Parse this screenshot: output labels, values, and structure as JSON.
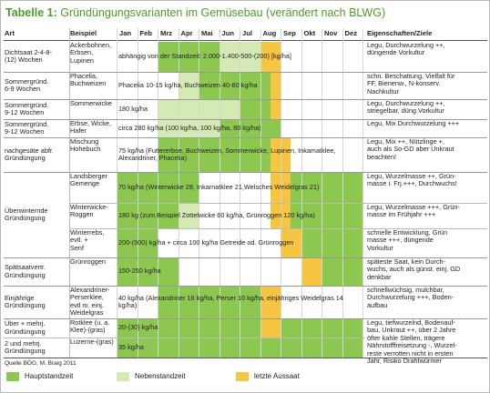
{
  "title": {
    "label": "Tabelle 1:",
    "text": "Gründüngungsvarianten im Gemüsebau (verändert nach BLWG)"
  },
  "header": [
    "Art",
    "Beispiel",
    "Jan",
    "Feb",
    "Mrz",
    "Apr",
    "Mai",
    "Jun",
    "Jul",
    "Aug",
    "Sep",
    "Okt",
    "Nov",
    "Dez",
    "Eigenschaften/Ziele"
  ],
  "rows": [
    {
      "art": "Dichtsaat 2-4-8-\n(12) Wochen",
      "beispiel": "Ackerbohnen,\nErbsen,\nLupinen",
      "menge": "abhängig von der Standzeit: 2.000-1.400-500-(200) [kg/ha]",
      "eigenschaften": "Legu, Durchwurzelung ++,\ndüngende Vorkultur"
    },
    {
      "art": "Sommergründ.\n6-9 Wochen",
      "beispiel": "Phacelia,\nBuchweizen",
      "menge": "Phacelia 10-15 kg/ha, Buchweizen 40-80 kg/ha",
      "eigenschaften": "schn. Beschattung, Vielfalt für\nFF, Bienenw., N-konserv.\nNachkultur"
    },
    {
      "art": "Sommergründ.\n9-12 Wochen",
      "beispiel": "Sommerwicke",
      "menge": "180 kg/ha",
      "eigenschaften": "Legu, Durchwurzelung ++,\nstriegelbar, düng.Vorkultur"
    },
    {
      "art": "Sommergründ.\n9-12 Wochen",
      "beispiel": "Erbse, Wicke,\nHafer",
      "menge": "circa 280 kg/ha (100 kg/ha, 100 kg/ha, 80 kg/ha)",
      "eigenschaften": "Legu, Mix Durchwurzelung +++"
    },
    {
      "art": "nachgesäte abfr.\nGründüngung",
      "beispiel": "Mischung\nHohebuch",
      "menge": "75 kg/ha (Futtererbse, Buchweizen, Sommerwicke, Lupinen, Inkamatklee,\nAlexandriner, Phacelia)",
      "eigenschaften": "Legu, Mix ++, Nützlinge +,\nauch als So-GD aber Unkraut\nbeachten!"
    },
    {
      "art": "Überwinternde\nGründüngung",
      "beispiel": "Landsberger\nGemenge",
      "menge": "70 kg/ha (Winterwicke 28, Inkarnatklee 21,Welsches Weidelgras 21)",
      "eigenschaften": "Legu, Wurzelmasse ++, Grün-\nmasse i. Frj.+++, Durchwuchs!"
    },
    {
      "beispiel": "Winterwicke-\nRoggen",
      "menge": "180 kg (zum Beispiel Zottelwicke 60 kg/ha, Grünroggen 120 kg/ha)",
      "eigenschaften": "Legu, Wurzelmasse +++, Grün-\nmasse im Frühjahr +++"
    },
    {
      "beispiel": "Winterrebs,\nevtl. +\nSenf",
      "menge": "200-(500) kg/ha + circa 100 kg/ha Getreide od. Grünroggen",
      "eigenschaften": "schnelle Entwicklung, Grün\nmasse +++, düngende\nVorkultur"
    },
    {
      "art": "Spätsaatvertr.\nGründüngung",
      "beispiel": "Grünroggen",
      "menge": "150-250 kg/ha",
      "eigenschaften": "späteste Saat, kein Durch-\nwuchs, auch als günst. einj. GD\ndenkbar"
    },
    {
      "art": "Einjährige\nGründüngung",
      "beispiel": "Alexandriner-\nPerserklee,\nevtl m. einj.\nWeidelgras",
      "menge": "40 kg/ha (Alexandriner 16 kg/ha, Perser 10 kg/ha, einjähriges Weidelgras 14 kg/ha)",
      "eigenschaften": "schnellwüchsig, mulchbar,\nDurchwurzelung +++, Boden-\naufbau"
    },
    {
      "art": "Über + mehrj.\nGründüngung",
      "beispiel": "Rotklee (u. a.\nKlee)-(gras)",
      "menge": "20-(30) kg/ha",
      "eigenschaften": "Legu, tiefwurzelnd, Bodenauf-\nbau, Unkraut ++, über 2 Jahre\nöfter kahle Stellen, trägere\nNährstofffreisetzung -, Wurzel-\nreste verrotten nicht in ersten\nJahr, Risiko Drahtwürmer"
    },
    {
      "art": "2 und mehrj.\nGründüngung",
      "beispiel": "Luzerne-(gras)",
      "menge": "35 kg/ha"
    }
  ],
  "source": "Quelle BÖG, M. Braig 2011",
  "legend": [
    "Hauptstandzeit",
    "Nebenstandzeit",
    "letzte Aussaat"
  ]
}
